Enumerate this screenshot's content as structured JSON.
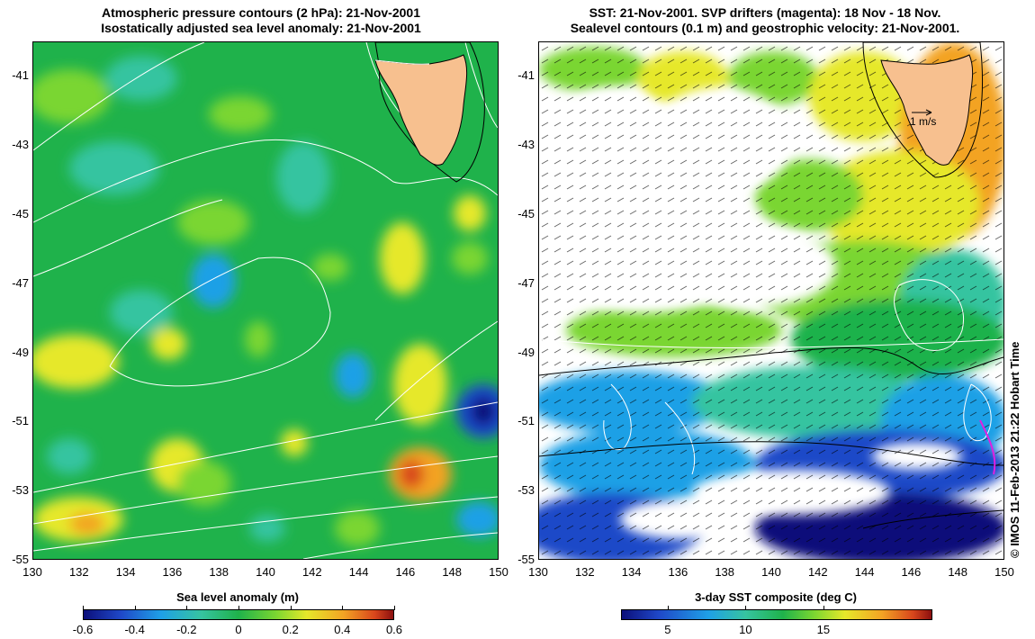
{
  "left_panel": {
    "title_line1": "Atmospheric pressure contours (2 hPa): 21-Nov-2001",
    "title_line2": "Isostatically adjusted sea level anomaly: 21-Nov-2001",
    "colorbar_title": "Sea level anomaly (m)",
    "colorbar_ticks": [
      "-0.6",
      "-0.4",
      "-0.2",
      "0",
      "0.2",
      "0.4",
      "0.6"
    ],
    "colorbar_tick_values": [
      -0.6,
      -0.4,
      -0.2,
      0,
      0.2,
      0.4,
      0.6
    ],
    "colorbar_range": [
      -0.6,
      0.6
    ]
  },
  "right_panel": {
    "title_line1": "SST: 21-Nov-2001. SVP drifters (magenta): 18 Nov - 18 Nov.",
    "title_line2": "Sealevel contours (0.1 m) and geostrophic velocity: 21-Nov-2001.",
    "colorbar_title": "3-day SST composite (deg C)",
    "colorbar_ticks": [
      "5",
      "10",
      "15"
    ],
    "colorbar_tick_values": [
      5,
      10,
      15
    ],
    "colorbar_range": [
      2,
      22
    ],
    "scale_arrow_label": "1 m/s"
  },
  "axes": {
    "lat_ticks": [
      "-41",
      "-43",
      "-45",
      "-47",
      "-49",
      "-51",
      "-53",
      "-55"
    ],
    "lat_values": [
      -41,
      -43,
      -45,
      -47,
      -49,
      -51,
      -53,
      -55
    ],
    "lon_ticks": [
      "130",
      "132",
      "134",
      "136",
      "138",
      "140",
      "142",
      "144",
      "146",
      "148",
      "150"
    ],
    "lon_values": [
      130,
      132,
      134,
      136,
      138,
      140,
      142,
      144,
      146,
      148,
      150
    ],
    "lat_range": [
      -55,
      -40
    ],
    "lon_range": [
      130,
      150
    ]
  },
  "copyright": "© IMOS 11-Feb-2013 21:22 Hobart Time",
  "colors": {
    "land": "#f7c08f",
    "anomaly_base": "#1fb24b",
    "sst_warm": "#f3a324",
    "sst_mid": "#7ad631",
    "sst_cold": "#1f48c8",
    "cloud": "#ffffff",
    "drifter": "#e020e0"
  }
}
